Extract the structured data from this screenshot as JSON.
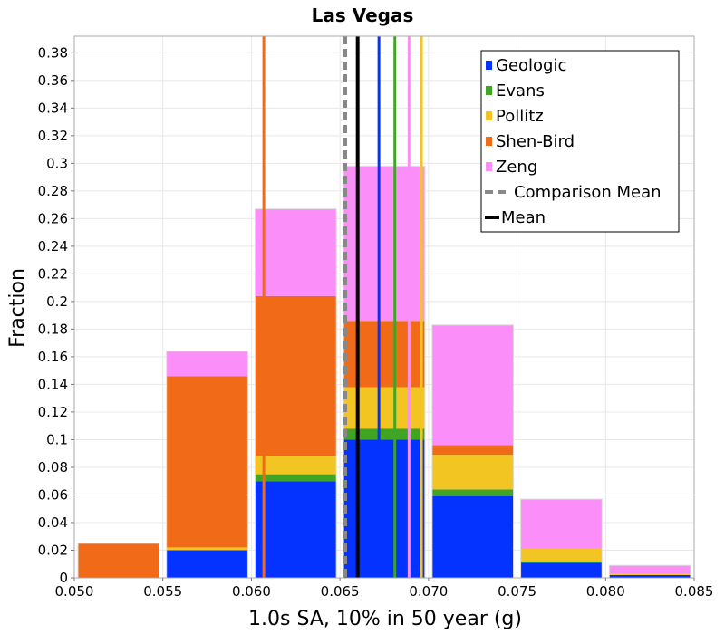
{
  "chart_data": {
    "type": "bar",
    "stacked": true,
    "title": "Las Vegas",
    "xlabel": "1.0s SA, 10% in 50 year (g)",
    "ylabel": "Fraction",
    "xlim": [
      0.05,
      0.085
    ],
    "ylim": [
      0,
      0.392
    ],
    "x_ticks": [
      0.05,
      0.055,
      0.06,
      0.065,
      0.07,
      0.075,
      0.08,
      0.085
    ],
    "x_tick_labels": [
      "0.050",
      "0.055",
      "0.060",
      "0.065",
      "0.070",
      "0.075",
      "0.080",
      "0.085"
    ],
    "y_ticks": [
      0,
      0.02,
      0.04,
      0.06,
      0.08,
      0.1,
      0.12,
      0.14,
      0.16,
      0.18,
      0.2,
      0.22,
      0.24,
      0.26,
      0.28,
      0.3,
      0.32,
      0.34,
      0.36,
      0.38
    ],
    "y_tick_labels": [
      "0",
      "0.02",
      "0.04",
      "0.06",
      "0.08",
      "0.1",
      "0.12",
      "0.14",
      "0.16",
      "0.18",
      "0.2",
      "0.22",
      "0.24",
      "0.26",
      "0.28",
      "0.3",
      "0.32",
      "0.34",
      "0.36",
      "0.38"
    ],
    "bins": [
      {
        "x0": 0.05,
        "x1": 0.055
      },
      {
        "x0": 0.055,
        "x1": 0.06
      },
      {
        "x0": 0.06,
        "x1": 0.065
      },
      {
        "x0": 0.065,
        "x1": 0.07
      },
      {
        "x0": 0.07,
        "x1": 0.075
      },
      {
        "x0": 0.075,
        "x1": 0.08
      },
      {
        "x0": 0.08,
        "x1": 0.085
      }
    ],
    "series": [
      {
        "name": "Geologic",
        "color": "#0433ff",
        "values": [
          0,
          0.02,
          0.07,
          0.1,
          0.059,
          0.011,
          0.002
        ]
      },
      {
        "name": "Evans",
        "color": "#40a424",
        "values": [
          0,
          0,
          0.005,
          0.008,
          0.005,
          0.001,
          0
        ]
      },
      {
        "name": "Pollitz",
        "color": "#f2c523",
        "values": [
          0,
          0.002,
          0.013,
          0.03,
          0.025,
          0.009,
          0.001
        ]
      },
      {
        "name": "Shen-Bird",
        "color": "#f06a18",
        "values": [
          0.025,
          0.124,
          0.116,
          0.048,
          0.007,
          0,
          0
        ]
      },
      {
        "name": "Zeng",
        "color": "#fb8ef9",
        "values": [
          0,
          0.018,
          0.063,
          0.112,
          0.087,
          0.036,
          0.006
        ]
      }
    ],
    "mean_lines": [
      {
        "name": "Geologic",
        "x": 0.0672,
        "color": "#0433ff",
        "style": "solid"
      },
      {
        "name": "Evans",
        "x": 0.0681,
        "color": "#40a424",
        "style": "solid"
      },
      {
        "name": "Pollitz",
        "x": 0.0696,
        "color": "#f2c523",
        "style": "solid"
      },
      {
        "name": "Shen-Bird",
        "x": 0.0607,
        "color": "#f06a18",
        "style": "solid"
      },
      {
        "name": "Zeng",
        "x": 0.0689,
        "color": "#fb8ef9",
        "style": "solid"
      },
      {
        "name": "Comparison Mean",
        "x": 0.0653,
        "color": "#888888",
        "style": "dashed"
      },
      {
        "name": "Mean",
        "x": 0.066,
        "color": "#000000",
        "style": "solid"
      }
    ],
    "legend": {
      "position": "top-right",
      "entries": [
        {
          "label": "Geologic",
          "color": "#0433ff",
          "symbol": "square"
        },
        {
          "label": "Evans",
          "color": "#40a424",
          "symbol": "square"
        },
        {
          "label": "Pollitz",
          "color": "#f2c523",
          "symbol": "square"
        },
        {
          "label": "Shen-Bird",
          "color": "#f06a18",
          "symbol": "square"
        },
        {
          "label": "Zeng",
          "color": "#fb8ef9",
          "symbol": "square"
        },
        {
          "label": "Comparison Mean",
          "color": "#888888",
          "symbol": "dashed-line"
        },
        {
          "label": "Mean",
          "color": "#000000",
          "symbol": "solid-line"
        }
      ]
    },
    "grid": true
  }
}
